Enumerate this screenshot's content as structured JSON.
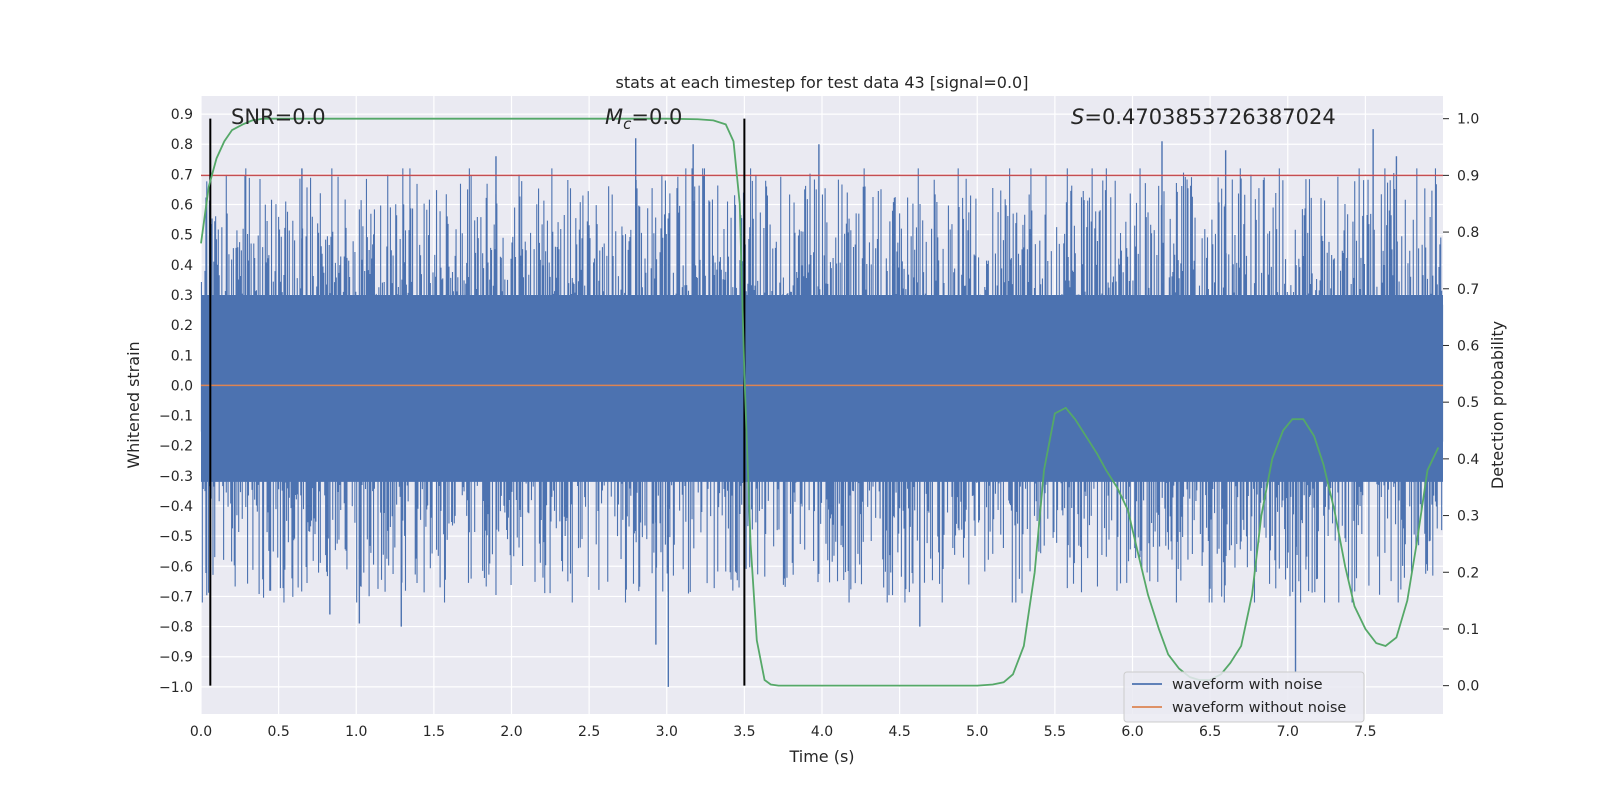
{
  "chart_data": {
    "type": "line",
    "title": "stats at each timestep for test data 43 [signal=0.0]",
    "xlabel": "Time (s)",
    "ylabel": "Whitened strain",
    "y2label": "Detection probability",
    "xlim": [
      0.0,
      8.0
    ],
    "ylim": [
      -1.09,
      0.96
    ],
    "y2lim": [
      -0.05,
      1.04
    ],
    "xticks": [
      "0.0",
      "0.5",
      "1.0",
      "1.5",
      "2.0",
      "2.5",
      "3.0",
      "3.5",
      "4.0",
      "4.5",
      "5.0",
      "5.5",
      "6.0",
      "6.5",
      "7.0",
      "7.5"
    ],
    "yticks": [
      "0.9",
      "0.8",
      "0.7",
      "0.6",
      "0.5",
      "0.4",
      "0.3",
      "0.2",
      "0.1",
      "0.0",
      "−0.1",
      "−0.2",
      "−0.3",
      "−0.4",
      "−0.5",
      "−0.6",
      "−0.7",
      "−0.8",
      "−0.9",
      "−1.0"
    ],
    "y2ticks": [
      "1.0",
      "0.9",
      "0.8",
      "0.7",
      "0.6",
      "0.5",
      "0.4",
      "0.3",
      "0.2",
      "0.1",
      "0.0"
    ],
    "grid": true,
    "annotations": {
      "snr": "SNR=0.0",
      "mc_symbol": "M",
      "mc_sub": "c",
      "mc_value": "=0.0",
      "s_symbol": "S",
      "s_value": "=0.4703853726387024"
    },
    "legend": {
      "placement": "lower-right",
      "entries": [
        "waveform with noise",
        "waveform without noise"
      ]
    },
    "series": [
      {
        "name": "waveform with noise",
        "axis": "left",
        "color": "#4c72b0",
        "description_of_shape": "dense noise, mostly within -0.45..0.45, spikes to about 0.85 and -1.0",
        "band_low": -0.45,
        "band_high": 0.45,
        "spikes": [
          {
            "x": 0.65,
            "y": 0.72
          },
          {
            "x": 0.83,
            "y": -0.76
          },
          {
            "x": 1.02,
            "y": -0.79
          },
          {
            "x": 1.29,
            "y": -0.8
          },
          {
            "x": 1.9,
            "y": 0.76
          },
          {
            "x": 2.8,
            "y": 0.82
          },
          {
            "x": 2.93,
            "y": -0.86
          },
          {
            "x": 3.01,
            "y": -1.0
          },
          {
            "x": 3.17,
            "y": 0.8
          },
          {
            "x": 3.98,
            "y": 0.8
          },
          {
            "x": 4.63,
            "y": -0.8
          },
          {
            "x": 6.19,
            "y": 0.81
          },
          {
            "x": 6.6,
            "y": 0.78
          },
          {
            "x": 7.05,
            "y": -0.95
          },
          {
            "x": 7.55,
            "y": 0.85
          },
          {
            "x": 7.7,
            "y": 0.76
          }
        ]
      },
      {
        "name": "waveform without noise",
        "axis": "left",
        "color": "#dd8452",
        "x": [
          0.0,
          8.0
        ],
        "y": [
          0.0,
          0.0
        ]
      },
      {
        "axis": "right",
        "color": "#55a868",
        "x": [
          0.0,
          0.05,
          0.1,
          0.15,
          0.2,
          0.27,
          0.33,
          0.4,
          0.5,
          1.0,
          2.0,
          3.0,
          3.2,
          3.3,
          3.38,
          3.43,
          3.47,
          3.5,
          3.54,
          3.58,
          3.63,
          3.67,
          3.72,
          3.8,
          4.0,
          4.5,
          5.0,
          5.1,
          5.17,
          5.23,
          5.3,
          5.37,
          5.43,
          5.5,
          5.57,
          5.63,
          5.7,
          5.77,
          5.83,
          5.9,
          5.97,
          6.03,
          6.1,
          6.17,
          6.23,
          6.3,
          6.37,
          6.43,
          6.5,
          6.57,
          6.63,
          6.7,
          6.77,
          6.83,
          6.9,
          6.97,
          7.03,
          7.1,
          7.17,
          7.23,
          7.3,
          7.37,
          7.43,
          7.5,
          7.57,
          7.63,
          7.7,
          7.77,
          7.83,
          7.9,
          7.97
        ],
        "y": [
          0.78,
          0.88,
          0.93,
          0.96,
          0.98,
          0.99,
          0.997,
          1.0,
          1.0,
          1.0,
          1.0,
          1.0,
          0.999,
          0.997,
          0.99,
          0.96,
          0.85,
          0.55,
          0.25,
          0.08,
          0.01,
          0.002,
          0.0,
          0.0,
          0.0,
          0.0,
          0.0,
          0.002,
          0.006,
          0.02,
          0.07,
          0.2,
          0.38,
          0.48,
          0.49,
          0.47,
          0.44,
          0.41,
          0.38,
          0.35,
          0.31,
          0.24,
          0.16,
          0.1,
          0.055,
          0.03,
          0.015,
          0.01,
          0.01,
          0.02,
          0.04,
          0.07,
          0.16,
          0.3,
          0.4,
          0.45,
          0.47,
          0.47,
          0.44,
          0.39,
          0.31,
          0.21,
          0.14,
          0.1,
          0.075,
          0.07,
          0.085,
          0.15,
          0.25,
          0.38,
          0.42
        ]
      },
      {
        "axis": "right",
        "color": "#c44e52",
        "description_of_shape": "horizontal threshold line",
        "x": [
          0.0,
          8.0
        ],
        "y": [
          0.9,
          0.9
        ]
      }
    ],
    "vertical_lines": [
      {
        "x": 0.06,
        "color": "#000000"
      },
      {
        "x": 3.5,
        "color": "#000000"
      }
    ]
  }
}
